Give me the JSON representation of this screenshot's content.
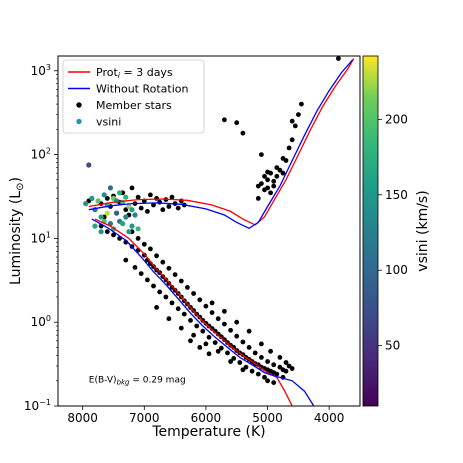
{
  "chart_data": {
    "type": "scatter",
    "title": "",
    "xlabel": "Temperature (K)",
    "ylabel": "Luminosity (L",
    "ylabel_sub": "⊙",
    "ylabel_close": ")",
    "x_reversed": true,
    "xlim": [
      8400,
      3500
    ],
    "ylim": [
      0.1,
      1500
    ],
    "yscale": "log",
    "x_ticks": [
      8000,
      7000,
      6000,
      5000,
      4000
    ],
    "x_tick_labels": [
      "8000",
      "7000",
      "6000",
      "5000",
      "4000"
    ],
    "y_ticks": [
      0.1,
      1,
      10,
      100,
      1000
    ],
    "y_tick_base": "10",
    "y_tick_exps": [
      "−1",
      "0",
      "1",
      "2",
      "3"
    ],
    "legend": {
      "position": "top-left",
      "entries": [
        {
          "label_main": "Prot",
          "label_sub": "i",
          "label_rest": " = 3 days",
          "kind": "line",
          "color": "#ff0000"
        },
        {
          "label_main": "Without Rotation",
          "label_sub": "",
          "label_rest": "",
          "kind": "line",
          "color": "#0000ff"
        },
        {
          "label_main": "Member stars",
          "label_sub": "",
          "label_rest": "",
          "kind": "point",
          "color": "#000000"
        },
        {
          "label_main": "vsini",
          "label_sub": "",
          "label_rest": "",
          "kind": "point",
          "color": "#2a8fb8"
        }
      ]
    },
    "annotation": {
      "main": "E(B-V)",
      "sub": "bkg",
      "rest": " = 0.29 mag",
      "x": 7900,
      "y": 0.19
    },
    "colorbar": {
      "label": "vsini (km/s)",
      "min": 10,
      "max": 242,
      "ticks": [
        50,
        100,
        150,
        200
      ],
      "tick_labels": [
        "50",
        "100",
        "150",
        "200"
      ],
      "colormap": "viridis"
    },
    "series": [
      {
        "name": "Prot_i = 3 days",
        "kind": "line",
        "color": "#ff0000",
        "segments": [
          {
            "x": [
              7800,
              7550,
              7250,
              7000,
              6800,
              6600,
              6400,
              6200,
              6000,
              5800,
              5600,
              5400,
              5200,
              5000,
              4850
            ],
            "y": [
              17,
              14,
              10,
              6.5,
              4.3,
              3.0,
              2.0,
              1.35,
              0.95,
              0.7,
              0.52,
              0.4,
              0.32,
              0.25,
              0.22
            ]
          },
          {
            "x": [
              4850,
              4720,
              4600
            ],
            "y": [
              0.22,
              0.15,
              0.1
            ]
          },
          {
            "x": [
              7900,
              7500,
              7100,
              6700,
              6300,
              5900,
              5600,
              5400,
              5200,
              5050,
              4900,
              4700,
              4500,
              4300,
              4100,
              3900,
              3700,
              3600
            ],
            "y": [
              24,
              27,
              29,
              29.5,
              28.5,
              25,
              21,
              17,
              14.5,
              18,
              28,
              50,
              100,
              200,
              380,
              650,
              1050,
              1400
            ]
          }
        ]
      },
      {
        "name": "Without Rotation",
        "kind": "line",
        "color": "#0000ff",
        "segments": [
          {
            "x": [
              7850,
              7600,
              7300,
              7050,
              6850,
              6650,
              6450,
              6250,
              6050,
              5850,
              5650,
              5450,
              5250,
              5050,
              4900
            ],
            "y": [
              17,
              13.5,
              9.5,
              6.0,
              4.0,
              2.8,
              1.9,
              1.28,
              0.9,
              0.66,
              0.5,
              0.38,
              0.31,
              0.25,
              0.23
            ]
          },
          {
            "x": [
              4900,
              4600,
              4400,
              4250
            ],
            "y": [
              0.23,
              0.2,
              0.15,
              0.1
            ]
          },
          {
            "x": [
              7900,
              7550,
              7200,
              6800,
              6400,
              6000,
              5700,
              5500,
              5300,
              5150,
              5000,
              4800,
              4600,
              4400,
              4200,
              4000,
              3800,
              3620
            ],
            "y": [
              22,
              24.5,
              26,
              26.5,
              25.5,
              22.5,
              19,
              15.5,
              13.2,
              15.5,
              24,
              42,
              85,
              170,
              330,
              580,
              950,
              1350
            ]
          }
        ]
      },
      {
        "name": "Member stars",
        "kind": "scatter",
        "color": "#000000",
        "points": [
          [
            7900,
            28
          ],
          [
            7800,
            22
          ],
          [
            7700,
            26
          ],
          [
            7650,
            18
          ],
          [
            7600,
            30
          ],
          [
            7550,
            24
          ],
          [
            7500,
            32
          ],
          [
            7450,
            20
          ],
          [
            7400,
            27
          ],
          [
            7350,
            35
          ],
          [
            7300,
            22
          ],
          [
            7250,
            19
          ],
          [
            7200,
            40
          ],
          [
            7150,
            26
          ],
          [
            7100,
            31
          ],
          [
            7050,
            23
          ],
          [
            7000,
            28
          ],
          [
            6950,
            21
          ],
          [
            6900,
            33
          ],
          [
            6850,
            25
          ],
          [
            6800,
            30
          ],
          [
            6750,
            27
          ],
          [
            6700,
            22
          ],
          [
            6650,
            29
          ],
          [
            6600,
            24
          ],
          [
            6550,
            31
          ],
          [
            6500,
            26
          ],
          [
            6450,
            23
          ],
          [
            6400,
            28
          ],
          [
            6350,
            25
          ],
          [
            7700,
            14
          ],
          [
            7600,
            12
          ],
          [
            7500,
            11
          ],
          [
            7400,
            10
          ],
          [
            7300,
            9
          ],
          [
            7200,
            8
          ],
          [
            7100,
            7.2
          ],
          [
            7000,
            6.3
          ],
          [
            6950,
            5.5
          ],
          [
            6900,
            5.0
          ],
          [
            6850,
            4.6
          ],
          [
            6800,
            4.2
          ],
          [
            6750,
            3.9
          ],
          [
            6700,
            3.5
          ],
          [
            6650,
            3.2
          ],
          [
            6600,
            2.9
          ],
          [
            6550,
            2.6
          ],
          [
            6500,
            2.4
          ],
          [
            6450,
            2.2
          ],
          [
            6400,
            2.0
          ],
          [
            6350,
            1.8
          ],
          [
            6300,
            1.65
          ],
          [
            6250,
            1.5
          ],
          [
            6200,
            1.38
          ],
          [
            6150,
            1.25
          ],
          [
            6100,
            1.15
          ],
          [
            6050,
            1.05
          ],
          [
            6000,
            0.97
          ],
          [
            5950,
            0.9
          ],
          [
            5900,
            0.84
          ],
          [
            5850,
            0.78
          ],
          [
            5800,
            0.72
          ],
          [
            5750,
            0.67
          ],
          [
            5700,
            0.62
          ],
          [
            5650,
            0.57
          ],
          [
            5600,
            0.53
          ],
          [
            5550,
            0.5
          ],
          [
            5500,
            0.46
          ],
          [
            5450,
            0.43
          ],
          [
            5400,
            0.41
          ],
          [
            5350,
            0.38
          ],
          [
            5300,
            0.36
          ],
          [
            5250,
            0.34
          ],
          [
            5200,
            0.32
          ],
          [
            5150,
            0.31
          ],
          [
            5100,
            0.29
          ],
          [
            5050,
            0.28
          ],
          [
            5000,
            0.27
          ],
          [
            4950,
            0.26
          ],
          [
            4900,
            0.25
          ],
          [
            7200,
            12
          ],
          [
            7100,
            10
          ],
          [
            7000,
            8.5
          ],
          [
            6900,
            7.5
          ],
          [
            6800,
            6.2
          ],
          [
            6700,
            5.2
          ],
          [
            6600,
            4.4
          ],
          [
            6500,
            3.7
          ],
          [
            6400,
            3.1
          ],
          [
            6300,
            2.6
          ],
          [
            6200,
            2.2
          ],
          [
            6100,
            1.85
          ],
          [
            6000,
            1.55
          ],
          [
            5900,
            1.3
          ],
          [
            5800,
            1.1
          ],
          [
            5700,
            0.95
          ],
          [
            5600,
            0.8
          ],
          [
            5500,
            0.68
          ],
          [
            5400,
            0.58
          ],
          [
            5300,
            0.5
          ],
          [
            5200,
            0.43
          ],
          [
            5100,
            0.38
          ],
          [
            5000,
            0.34
          ],
          [
            4900,
            0.31
          ],
          [
            4800,
            0.29
          ],
          [
            4750,
            0.27
          ],
          [
            7300,
            5.5
          ],
          [
            7150,
            4.5
          ],
          [
            7050,
            3.8
          ],
          [
            6950,
            3.2
          ],
          [
            6850,
            2.7
          ],
          [
            6750,
            2.3
          ],
          [
            6650,
            2.0
          ],
          [
            6550,
            1.7
          ],
          [
            6450,
            1.45
          ],
          [
            6350,
            1.25
          ],
          [
            6250,
            1.05
          ],
          [
            6150,
            0.9
          ],
          [
            6050,
            0.78
          ],
          [
            5950,
            0.66
          ],
          [
            5850,
            0.57
          ],
          [
            5750,
            0.49
          ],
          [
            5650,
            0.43
          ],
          [
            5550,
            0.37
          ],
          [
            5450,
            0.33
          ],
          [
            5350,
            0.29
          ],
          [
            5250,
            0.26
          ],
          [
            5150,
            0.24
          ],
          [
            5050,
            0.22
          ],
          [
            6200,
            0.7
          ],
          [
            6000,
            0.55
          ],
          [
            5800,
            0.45
          ],
          [
            5600,
            0.34
          ],
          [
            5400,
            0.27
          ],
          [
            6400,
            0.85
          ],
          [
            6600,
            1.1
          ],
          [
            6800,
            1.5
          ],
          [
            5900,
            1.7
          ],
          [
            5700,
            1.35
          ],
          [
            5500,
            1.0
          ],
          [
            5300,
            0.78
          ],
          [
            5100,
            0.55
          ],
          [
            4950,
            0.45
          ],
          [
            4800,
            0.38
          ],
          [
            4700,
            0.33
          ],
          [
            4650,
            0.3
          ],
          [
            5000,
            0.2
          ],
          [
            4900,
            0.19
          ],
          [
            4850,
            0.24
          ],
          [
            4750,
            0.22
          ],
          [
            4700,
            0.26
          ],
          [
            4600,
            0.28
          ],
          [
            6250,
            0.6
          ],
          [
            6100,
            0.5
          ],
          [
            5950,
            0.42
          ],
          [
            5150,
            30
          ],
          [
            5100,
            45
          ],
          [
            5050,
            55
          ],
          [
            5000,
            50
          ],
          [
            4950,
            60
          ],
          [
            4900,
            48
          ],
          [
            4850,
            70
          ],
          [
            4800,
            65
          ],
          [
            4750,
            90
          ],
          [
            4700,
            85
          ],
          [
            4650,
            120
          ],
          [
            4600,
            150
          ],
          [
            4550,
            220
          ],
          [
            4500,
            300
          ],
          [
            4450,
            400
          ],
          [
            5000,
            40
          ],
          [
            5050,
            38
          ],
          [
            4950,
            35
          ],
          [
            5100,
            100
          ],
          [
            5700,
            260
          ],
          [
            5500,
            240
          ],
          [
            5400,
            180
          ],
          [
            4600,
            250
          ],
          [
            3850,
            1400
          ],
          [
            5150,
            42
          ],
          [
            4900,
            42
          ],
          [
            4850,
            55
          ],
          [
            5000,
            62
          ],
          [
            4750,
            60
          ]
        ]
      },
      {
        "name": "vsini",
        "kind": "scatter-colored",
        "points": [
          [
            7900,
            75,
            70
          ],
          [
            7850,
            30,
            150
          ],
          [
            7800,
            22,
            120
          ],
          [
            7750,
            28,
            200
          ],
          [
            7700,
            18,
            160
          ],
          [
            7650,
            33,
            140
          ],
          [
            7600,
            25,
            180
          ],
          [
            7550,
            15,
            110
          ],
          [
            7500,
            30,
            210
          ],
          [
            7450,
            20,
            90
          ],
          [
            7400,
            35,
            170
          ],
          [
            7350,
            27,
            190
          ],
          [
            7300,
            18,
            130
          ],
          [
            7250,
            24,
            220
          ],
          [
            7200,
            14,
            150
          ],
          [
            7800,
            14,
            160
          ],
          [
            7700,
            12,
            140
          ],
          [
            7600,
            20,
            230
          ],
          [
            7500,
            13,
            175
          ],
          [
            7400,
            16,
            120
          ],
          [
            7550,
            40,
            100
          ],
          [
            7350,
            15,
            165
          ],
          [
            7250,
            12,
            145
          ],
          [
            7150,
            19,
            125
          ],
          [
            7100,
            13,
            185
          ],
          [
            7950,
            26,
            150
          ],
          [
            7650,
            16,
            195
          ],
          [
            7450,
            28,
            135
          ],
          [
            7300,
            31,
            175
          ],
          [
            7200,
            22,
            155
          ]
        ]
      }
    ]
  }
}
